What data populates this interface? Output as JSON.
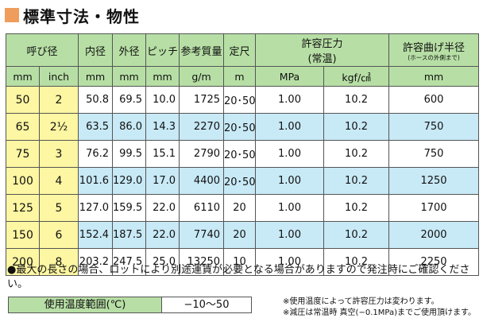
{
  "title": "標準寸法・物性",
  "header": {
    "nominal": "呼び径",
    "inner": "内径",
    "outer": "外径",
    "pitch": "ピッチ",
    "weight": "参考質量",
    "length": "定尺",
    "pressure": "許容圧力",
    "pressure_sub": "(常温)",
    "radius": "許容曲げ半径",
    "radius_sub": "(ホースの外側まで)"
  },
  "units": {
    "mm": "mm",
    "inch": "inch",
    "inner": "mm",
    "outer": "mm",
    "pitch": "mm",
    "weight": "g/m",
    "length": "m",
    "mpa": "MPa",
    "kgf": "kgf/㎠",
    "radius": "mm"
  },
  "rows": [
    {
      "mm": "50",
      "inch": "2",
      "inner": "50.8",
      "outer": "69.5",
      "pitch": "10.0",
      "weight": "1725",
      "length": "20･50",
      "mpa": "1.00",
      "kgf": "10.2",
      "radius": "600"
    },
    {
      "mm": "65",
      "inch": "2½",
      "inner": "63.5",
      "outer": "86.0",
      "pitch": "14.3",
      "weight": "2270",
      "length": "20･50",
      "mpa": "1.00",
      "kgf": "10.2",
      "radius": "750"
    },
    {
      "mm": "75",
      "inch": "3",
      "inner": "76.2",
      "outer": "99.5",
      "pitch": "15.1",
      "weight": "2790",
      "length": "20･50",
      "mpa": "1.00",
      "kgf": "10.2",
      "radius": "750"
    },
    {
      "mm": "100",
      "inch": "4",
      "inner": "101.6",
      "outer": "129.0",
      "pitch": "17.0",
      "weight": "4400",
      "length": "20･50",
      "mpa": "1.00",
      "kgf": "10.2",
      "radius": "1250"
    },
    {
      "mm": "125",
      "inch": "5",
      "inner": "127.0",
      "outer": "159.5",
      "pitch": "22.0",
      "weight": "6110",
      "length": "20",
      "mpa": "1.00",
      "kgf": "10.2",
      "radius": "1700"
    },
    {
      "mm": "150",
      "inch": "6",
      "inner": "152.4",
      "outer": "187.5",
      "pitch": "22.0",
      "weight": "7740",
      "length": "20",
      "mpa": "1.00",
      "kgf": "10.2",
      "radius": "2000"
    },
    {
      "mm": "200",
      "inch": "8",
      "inner": "203.2",
      "outer": "247.5",
      "pitch": "25.0",
      "weight": "13250",
      "length": "10",
      "mpa": "1.00",
      "kgf": "10.2",
      "radius": "2250"
    }
  ],
  "note": "●最大の長さの場合、ロットにより別途運賃が必要となる場合がありますので発注時にご確認ください。",
  "temperature": {
    "label": "使用温度範囲(℃)",
    "value": "−10〜50"
  },
  "footnotes": [
    "※使用温度によって許容圧力は変わります。",
    "※減圧は常温時 真空(−0.1MPa)までご使用頂けます。"
  ],
  "colors": {
    "header_green": "#b7dfa5",
    "nominal_yellow": "#fdf6a2",
    "stripe_blue": "#c8e9f6",
    "title_orange": "#ef9d5c"
  }
}
